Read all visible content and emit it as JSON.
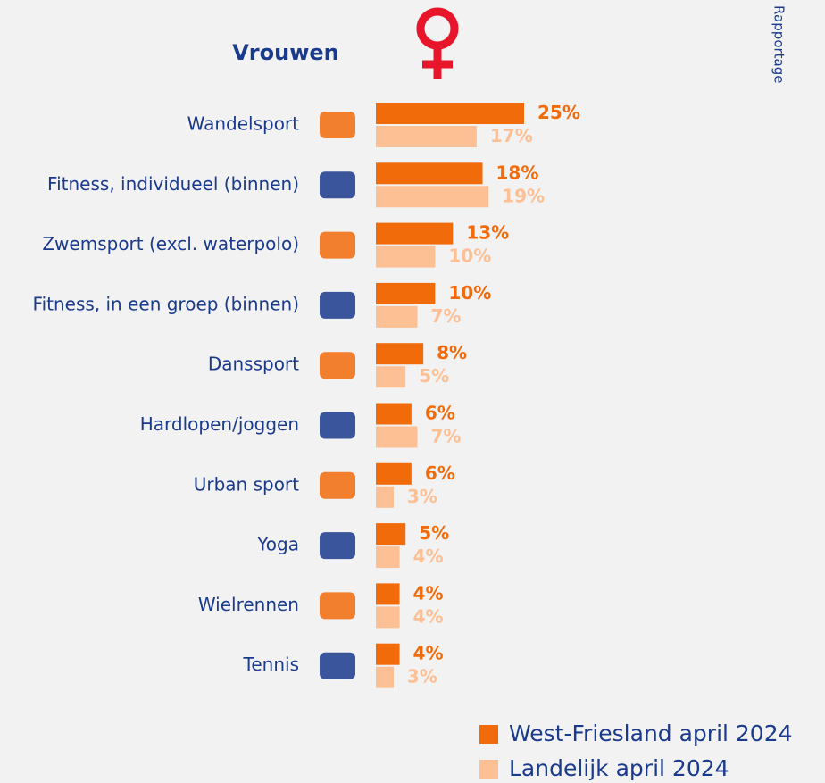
{
  "chart_data": {
    "type": "barh",
    "title": "Vrouwen",
    "side_label": "Rapportage",
    "categories": [
      "Wandelsport",
      "Fitness, individueel (binnen)",
      "Zwemsport (excl. waterpolo)",
      "Fitness, in een groep (binnen)",
      "Danssport",
      "Hardlopen/joggen",
      "Urban sport",
      "Yoga",
      "Wielrennen",
      "Tennis"
    ],
    "series": [
      {
        "name": "West-Friesland april 2024",
        "color": "#f26b0a",
        "values": [
          25,
          18,
          13,
          10,
          8,
          6,
          6,
          5,
          4,
          4
        ],
        "value_labels": [
          "25%",
          "18%",
          "13%",
          "10%",
          "8%",
          "6%",
          "6%",
          "5%",
          "4%",
          "4%"
        ]
      },
      {
        "name": "Landelijk april 2024",
        "color": "#fdbf94",
        "values": [
          17,
          19,
          10,
          7,
          5,
          7,
          3,
          4,
          4,
          3
        ],
        "value_labels": [
          "17%",
          "19%",
          "10%",
          "7%",
          "5%",
          "7%",
          "3%",
          "4%",
          "4%",
          "3%"
        ]
      }
    ]
  }
}
